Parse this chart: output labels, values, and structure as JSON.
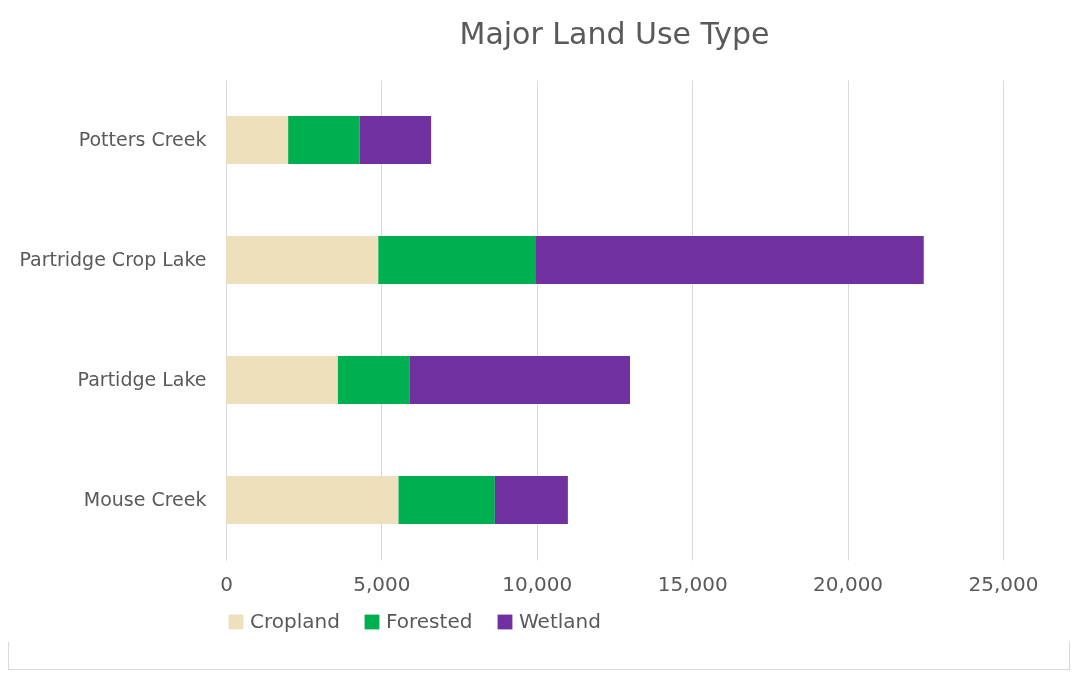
{
  "chart_data": {
    "type": "bar",
    "title": "Major Land Use Type",
    "orientation": "horizontal",
    "stacked": true,
    "categories": [
      "Potters Creek",
      "Partridge Crop Lake",
      "Partidge Lake",
      "Mouse Creek"
    ],
    "series": [
      {
        "name": "Cropland",
        "color": "#eee0bd",
        "values": [
          2000,
          4900,
          3600,
          5550
        ]
      },
      {
        "name": "Forested",
        "color": "#00b050",
        "values": [
          2300,
          5050,
          2300,
          3100
        ]
      },
      {
        "name": "Wetland",
        "color": "#7030a0",
        "values": [
          2300,
          12500,
          7100,
          2350
        ]
      }
    ],
    "xlim": [
      0,
      25000
    ],
    "xticks": [
      0,
      {
        "value": 5000,
        "label": "5,000"
      },
      {
        "value": 10000,
        "label": "10,000"
      },
      {
        "value": 15000,
        "label": "15,000"
      },
      {
        "value": 20000,
        "label": "20,000"
      },
      {
        "value": 25000,
        "label": "25,000"
      }
    ],
    "grid": "x",
    "legend": "bottom"
  }
}
